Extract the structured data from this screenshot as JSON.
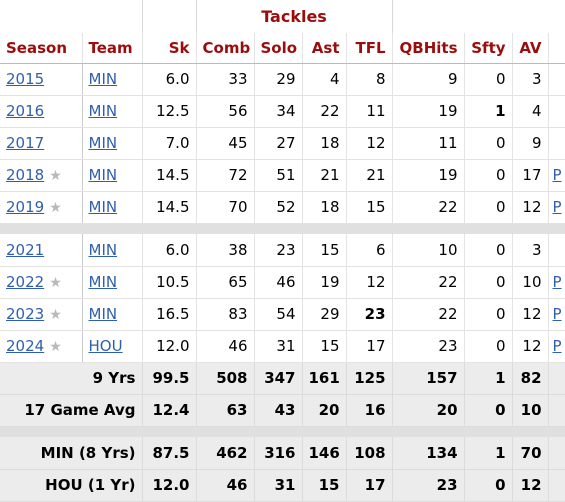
{
  "group_header": "Tackles",
  "columns": [
    "Season",
    "Team",
    "Sk",
    "Comb",
    "Solo",
    "Ast",
    "TFL",
    "QBHits",
    "Sfty",
    "AV"
  ],
  "seasons_block_1": [
    {
      "season": "2015",
      "star": false,
      "team": "MIN",
      "sk": "6.0",
      "comb": "33",
      "solo": "29",
      "ast": "4",
      "tfl": "8",
      "qbhits": "9",
      "sfty": "0",
      "av": "3",
      "extra": "",
      "bold": []
    },
    {
      "season": "2016",
      "star": false,
      "team": "MIN",
      "sk": "12.5",
      "comb": "56",
      "solo": "34",
      "ast": "22",
      "tfl": "11",
      "qbhits": "19",
      "sfty": "1",
      "av": "4",
      "extra": "",
      "bold": [
        "sfty"
      ]
    },
    {
      "season": "2017",
      "star": false,
      "team": "MIN",
      "sk": "7.0",
      "comb": "45",
      "solo": "27",
      "ast": "18",
      "tfl": "12",
      "qbhits": "11",
      "sfty": "0",
      "av": "9",
      "extra": "",
      "bold": []
    },
    {
      "season": "2018",
      "star": true,
      "team": "MIN",
      "sk": "14.5",
      "comb": "72",
      "solo": "51",
      "ast": "21",
      "tfl": "21",
      "qbhits": "19",
      "sfty": "0",
      "av": "17",
      "extra": "P",
      "bold": []
    },
    {
      "season": "2019",
      "star": true,
      "team": "MIN",
      "sk": "14.5",
      "comb": "70",
      "solo": "52",
      "ast": "18",
      "tfl": "15",
      "qbhits": "22",
      "sfty": "0",
      "av": "12",
      "extra": "P",
      "bold": []
    }
  ],
  "seasons_block_2": [
    {
      "season": "2021",
      "star": false,
      "team": "MIN",
      "sk": "6.0",
      "comb": "38",
      "solo": "23",
      "ast": "15",
      "tfl": "6",
      "qbhits": "10",
      "sfty": "0",
      "av": "3",
      "extra": "",
      "bold": []
    },
    {
      "season": "2022",
      "star": true,
      "team": "MIN",
      "sk": "10.5",
      "comb": "65",
      "solo": "46",
      "ast": "19",
      "tfl": "12",
      "qbhits": "22",
      "sfty": "0",
      "av": "10",
      "extra": "P",
      "bold": []
    },
    {
      "season": "2023",
      "star": true,
      "team": "MIN",
      "sk": "16.5",
      "comb": "83",
      "solo": "54",
      "ast": "29",
      "tfl": "23",
      "qbhits": "22",
      "sfty": "0",
      "av": "12",
      "extra": "P",
      "bold": [
        "tfl"
      ]
    },
    {
      "season": "2024",
      "star": true,
      "team": "HOU",
      "sk": "12.0",
      "comb": "46",
      "solo": "31",
      "ast": "15",
      "tfl": "17",
      "qbhits": "23",
      "sfty": "0",
      "av": "12",
      "extra": "P",
      "bold": []
    }
  ],
  "summary_block_1": [
    {
      "label": "9 Yrs",
      "sk": "99.5",
      "comb": "508",
      "solo": "347",
      "ast": "161",
      "tfl": "125",
      "qbhits": "157",
      "sfty": "1",
      "av": "82"
    },
    {
      "label": "17 Game Avg",
      "sk": "12.4",
      "comb": "63",
      "solo": "43",
      "ast": "20",
      "tfl": "16",
      "qbhits": "20",
      "sfty": "0",
      "av": "10"
    }
  ],
  "summary_block_2": [
    {
      "label": "MIN (8 Yrs)",
      "sk": "87.5",
      "comb": "462",
      "solo": "316",
      "ast": "146",
      "tfl": "108",
      "qbhits": "134",
      "sfty": "1",
      "av": "70"
    },
    {
      "label": "HOU (1 Yr)",
      "sk": "12.0",
      "comb": "46",
      "solo": "31",
      "ast": "15",
      "tfl": "17",
      "qbhits": "23",
      "sfty": "0",
      "av": "12"
    }
  ],
  "star_glyph": "★",
  "colors": {
    "header_red": "#9b0d0d",
    "link_blue": "#2f5fad",
    "summary_bg": "#ececec",
    "star_grey": "#b9b9b9"
  }
}
